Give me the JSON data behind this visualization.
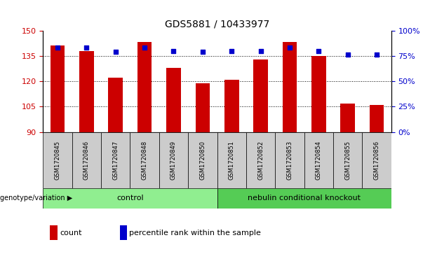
{
  "title": "GDS5881 / 10433977",
  "samples": [
    "GSM1720845",
    "GSM1720846",
    "GSM1720847",
    "GSM1720848",
    "GSM1720849",
    "GSM1720850",
    "GSM1720851",
    "GSM1720852",
    "GSM1720853",
    "GSM1720854",
    "GSM1720855",
    "GSM1720856"
  ],
  "counts": [
    141,
    138,
    122,
    143,
    128,
    119,
    121,
    133,
    143,
    135,
    107,
    106
  ],
  "percentiles": [
    83,
    83,
    79,
    83,
    80,
    79,
    80,
    80,
    83,
    80,
    76,
    76
  ],
  "ylim_left": [
    90,
    150
  ],
  "yticks_left": [
    90,
    105,
    120,
    135,
    150
  ],
  "ylim_right": [
    0,
    100
  ],
  "yticks_right": [
    0,
    25,
    50,
    75,
    100
  ],
  "bar_color": "#CC0000",
  "dot_color": "#0000CC",
  "bar_width": 0.5,
  "group1_label": "control",
  "group2_label": "nebulin conditional knockout",
  "group1_color": "#90EE90",
  "group2_color": "#55CC55",
  "genotype_label": "genotype/variation",
  "legend_count_label": "count",
  "legend_percentile_label": "percentile rank within the sample",
  "group1_indices": [
    0,
    1,
    2,
    3,
    4,
    5
  ],
  "group2_indices": [
    6,
    7,
    8,
    9,
    10,
    11
  ],
  "sample_bg_color": "#CCCCCC",
  "panel_bg": "#FFFFFF",
  "ytick_color_left": "#CC0000",
  "ytick_color_right": "#0000CC",
  "title_fontsize": 10,
  "figsize": [
    6.13,
    3.63
  ],
  "dpi": 100
}
